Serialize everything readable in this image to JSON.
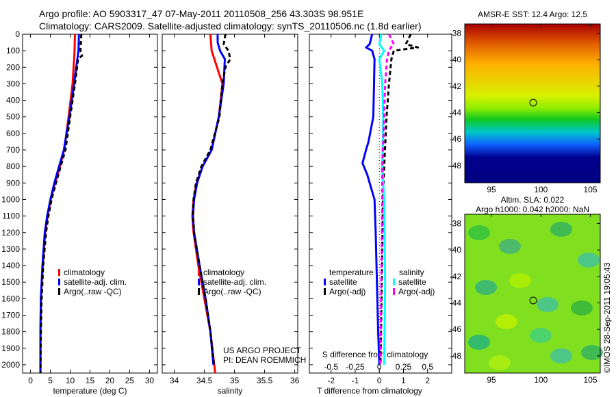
{
  "header": {
    "line1": "Argo profile: AO 5903317_47 07-May-2011 20110508_256 43.303S 98.951E",
    "line2": "Climatology: CARS2009. Satellite-adjusted climatology: synTS_20110506.nc (1.8d earlier)"
  },
  "colors": {
    "clim": "#ff0000",
    "sat": "#0000ff",
    "argo": "#000000",
    "sal_sat": "#00ffff",
    "sal_argo": "#ff00ff"
  },
  "chart_data": [
    {
      "type": "line",
      "title": "",
      "xlabel": "temperature (deg C)",
      "ylabel": "",
      "xlim": [
        -2,
        32
      ],
      "ylim": [
        2050,
        0
      ],
      "xticks": [
        "0",
        "5",
        "10",
        "15",
        "20",
        "25",
        "30"
      ],
      "yticks": [
        "0",
        "100",
        "200",
        "300",
        "400",
        "500",
        "600",
        "700",
        "800",
        "900",
        "1000",
        "1100",
        "1200",
        "1300",
        "1400",
        "1500",
        "1600",
        "1700",
        "1800",
        "1900",
        "2000"
      ],
      "legend": [
        "climatology",
        "satellite-adj. clim.",
        "Argo(..raw -QC)"
      ],
      "series": [
        {
          "name": "climatology",
          "depth": [
            0,
            100,
            150,
            300,
            500,
            700,
            800,
            900,
            1000,
            1100,
            1200,
            1400,
            1600,
            1800,
            2050
          ],
          "values": [
            11.2,
            11.1,
            11,
            10.6,
            9.6,
            8.5,
            7.4,
            6.2,
            5.1,
            4.3,
            3.7,
            3.1,
            2.6,
            2.5,
            2.5
          ]
        },
        {
          "name": "satellite-adj. clim.",
          "depth": [
            0,
            100,
            150,
            300,
            500,
            700,
            800,
            900,
            1000,
            1100,
            1200,
            1400,
            1600,
            1800,
            2050
          ],
          "values": [
            12.2,
            12.1,
            11.8,
            11,
            9.8,
            8.4,
            7.2,
            6,
            5,
            4.2,
            3.6,
            3,
            2.6,
            2.5,
            2.5
          ]
        },
        {
          "name": "Argo(..raw -QC)",
          "depth": [
            0,
            100,
            130,
            150,
            300,
            500,
            700,
            800,
            900,
            1000,
            1100,
            1200,
            1400,
            1600,
            1800,
            2050
          ],
          "values": [
            12.8,
            12.6,
            13,
            12,
            11.2,
            10,
            8.8,
            7.6,
            6.4,
            5.3,
            4.5,
            3.9,
            3.2,
            2.8,
            2.6,
            2.5
          ]
        }
      ]
    },
    {
      "type": "line",
      "xlabel": "salinity",
      "xlim": [
        33.8,
        36.05
      ],
      "ylim": [
        2050,
        0
      ],
      "xticks": [
        "34",
        "34.5",
        "35",
        "35.5",
        "36"
      ],
      "legend": [
        "climatology",
        "satellite-adj. clim.",
        "Argo(..raw -QC)"
      ],
      "annotation": [
        "US ARGO PROJECT",
        "PI: DEAN ROEMMICH"
      ],
      "series": [
        {
          "name": "climatology",
          "depth": [
            0,
            100,
            300,
            500,
            700,
            800,
            900,
            1000,
            1100,
            1200,
            1400,
            1600,
            1800,
            2050
          ],
          "values": [
            34.6,
            34.62,
            34.8,
            34.74,
            34.62,
            34.47,
            34.37,
            34.32,
            34.3,
            34.32,
            34.4,
            34.5,
            34.6,
            34.68
          ]
        },
        {
          "name": "satellite-adj. clim.",
          "depth": [
            0,
            50,
            100,
            150,
            300,
            500,
            700,
            800,
            900,
            1000,
            1100,
            1200,
            1400,
            1600,
            1800,
            2000
          ],
          "values": [
            34.72,
            34.72,
            34.76,
            34.84,
            34.82,
            34.74,
            34.62,
            34.47,
            34.38,
            34.33,
            34.31,
            34.33,
            34.42,
            34.52,
            34.6,
            34.65
          ]
        },
        {
          "name": "Argo(..raw -QC)",
          "depth": [
            0,
            60,
            100,
            150,
            200,
            300,
            500,
            700,
            800,
            900,
            1000,
            1100,
            1200,
            1400,
            1600,
            1800,
            2000
          ],
          "values": [
            34.85,
            34.82,
            34.9,
            34.93,
            34.85,
            34.8,
            34.75,
            34.6,
            34.45,
            34.36,
            34.32,
            34.31,
            34.33,
            34.42,
            34.52,
            34.6,
            34.66
          ]
        }
      ]
    },
    {
      "type": "line",
      "xlabel": "T difference from climatology",
      "xlabel2": "S difference from climatology",
      "xlim": [
        -2.9,
        3.0
      ],
      "xlim_s": [
        -0.725,
        0.75
      ],
      "ylim": [
        2050,
        0
      ],
      "xticks": [
        "-2",
        "-1",
        "0",
        "1",
        "2"
      ],
      "xticks_s": [
        "-0.5",
        "-0.25",
        "0",
        "0.25",
        "0.5"
      ],
      "legend_titles": [
        "temperature",
        "salinity"
      ],
      "legend": [
        "satellite",
        "Argo(-adj)",
        "satellite",
        "Argo(-adj)"
      ],
      "series": [
        {
          "name": "T satellite",
          "depth": [
            0,
            60,
            80,
            100,
            150,
            300,
            500,
            650,
            700,
            780,
            850,
            900,
            1000,
            1200,
            1500,
            1800,
            2000
          ],
          "values": [
            -0.3,
            -0.4,
            -0.55,
            -0.3,
            -0.2,
            -0.22,
            -0.25,
            -0.45,
            -0.55,
            -0.7,
            -0.5,
            -0.4,
            -0.2,
            -0.15,
            -0.1,
            -0.05,
            0
          ]
        },
        {
          "name": "T Argo(-adj)",
          "depth": [
            0,
            60,
            80,
            100,
            150,
            300,
            500,
            800,
            1000,
            1500,
            2000
          ],
          "values": [
            1.3,
            1.1,
            1.6,
            0.6,
            0.5,
            0.4,
            0.3,
            0.2,
            0.15,
            0.1,
            0.05
          ]
        },
        {
          "name": "S satellite",
          "depth": [
            0,
            60,
            100,
            150,
            300,
            500,
            800,
            1000,
            1500,
            2000
          ],
          "values": [
            0.02,
            0,
            0.05,
            0,
            0.03,
            0.04,
            0.03,
            0.05,
            0.06,
            0.05
          ]
        },
        {
          "name": "S Argo(-adj)",
          "depth": [
            0,
            60,
            80,
            100,
            150,
            300,
            500,
            800,
            1000,
            1500,
            2000
          ],
          "values": [
            0.1,
            0.15,
            0.12,
            0.1,
            0.08,
            0.06,
            0.05,
            0.03,
            0.03,
            0.02,
            0.01
          ]
        }
      ]
    }
  ],
  "maps": {
    "sst_title": "AMSR-E SST: 12.4 Argo: 12.5",
    "sla_title1": "Altim. SLA: 0.022",
    "sla_title2": "Argo h1000: 0.042 h2000: NaN",
    "yticks": [
      "-38",
      "-40",
      "-42",
      "-44",
      "-46",
      "-48"
    ],
    "xticks": [
      "95",
      "100",
      "105"
    ],
    "credit": "©IMOS 28-Sep-2011 19:05:43"
  }
}
